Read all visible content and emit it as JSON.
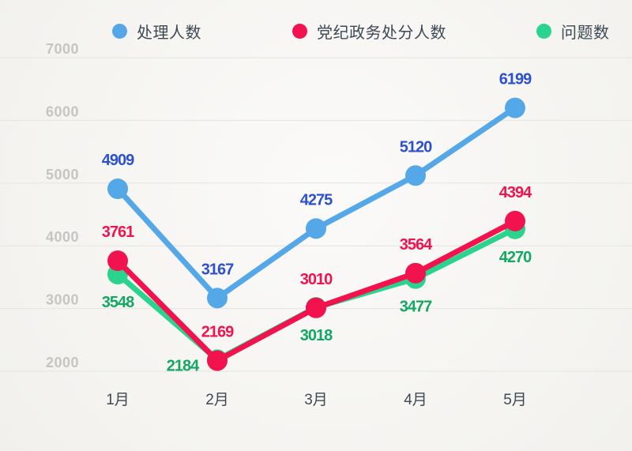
{
  "legend": {
    "items": [
      {
        "label": "处理人数",
        "color": "#55A8E8"
      },
      {
        "label": "党纪政务处分人数",
        "color": "#F2124E"
      },
      {
        "label": "问题数",
        "color": "#2BD48E"
      }
    ]
  },
  "chart_data": {
    "type": "line",
    "title": "",
    "categories": [
      "1月",
      "2月",
      "3月",
      "4月",
      "5月"
    ],
    "series": [
      {
        "name": "处理人数",
        "values": [
          4909,
          3167,
          4275,
          5120,
          6199
        ],
        "color": "#55A8E8",
        "label_color": "#2B51CE",
        "label_side": "above"
      },
      {
        "name": "党纪政务处分人数",
        "values": [
          3761,
          2169,
          3010,
          3564,
          4394
        ],
        "color": "#F2124E",
        "label_color": "#F2124E",
        "label_side": "above"
      },
      {
        "name": "问题数",
        "values": [
          3548,
          2184,
          3018,
          3477,
          4270
        ],
        "color": "#2BD48E",
        "label_color": "#12A763",
        "label_side": "below",
        "label_overrides": {
          "1": {
            "dx": -44,
            "dy": 8
          }
        }
      }
    ],
    "y_ticks": [
      2000,
      3000,
      4000,
      5000,
      6000,
      7000
    ],
    "ylim": [
      2000,
      7000
    ],
    "grid": true,
    "legend_position": "top",
    "xlabel": "",
    "ylabel": "",
    "axis_text_color": "#3D4955",
    "tick_text_color": "#C7C5C1",
    "gridline_color": "#E6E4E0"
  }
}
